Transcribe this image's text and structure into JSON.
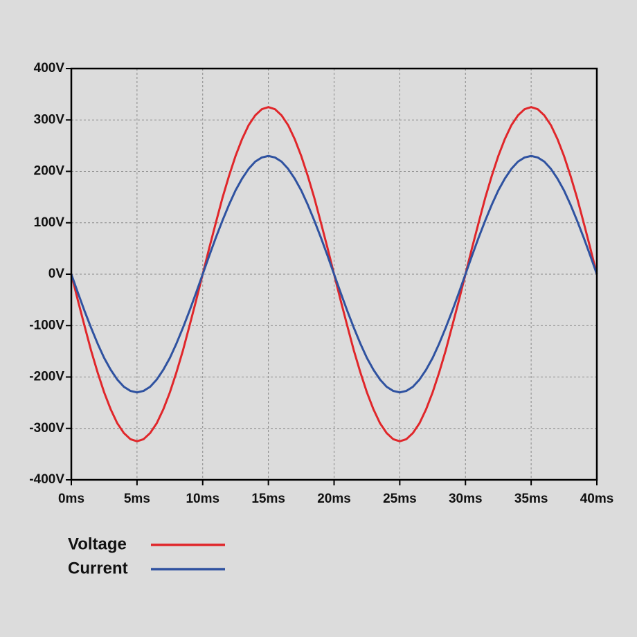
{
  "chart_data": {
    "type": "line",
    "x": [
      0,
      0.5,
      1,
      1.5,
      2,
      2.5,
      3,
      3.5,
      4,
      4.5,
      5,
      5.5,
      6,
      6.5,
      7,
      7.5,
      8,
      8.5,
      9,
      9.5,
      10,
      10.5,
      11,
      11.5,
      12,
      12.5,
      13,
      13.5,
      14,
      14.5,
      15,
      15.5,
      16,
      16.5,
      17,
      17.5,
      18,
      18.5,
      19,
      19.5,
      20,
      20.5,
      21,
      21.5,
      22,
      22.5,
      23,
      23.5,
      24,
      24.5,
      25,
      25.5,
      26,
      26.5,
      27,
      27.5,
      28,
      28.5,
      29,
      29.5,
      30,
      30.5,
      31,
      31.5,
      32,
      32.5,
      33,
      33.5,
      34,
      34.5,
      35,
      35.5,
      36,
      36.5,
      37,
      37.5,
      38,
      38.5,
      39,
      39.5,
      40
    ],
    "series": [
      {
        "name": "Voltage",
        "color": "#e0262a",
        "values": [
          0,
          -51,
          -100,
          -148,
          -191,
          -230,
          -263,
          -290,
          -309,
          -321,
          -325,
          -321,
          -309,
          -290,
          -263,
          -230,
          -191,
          -148,
          -100,
          -51,
          0,
          51,
          100,
          148,
          191,
          230,
          263,
          290,
          309,
          321,
          325,
          321,
          309,
          290,
          263,
          230,
          191,
          148,
          100,
          51,
          0,
          -51,
          -100,
          -148,
          -191,
          -230,
          -263,
          -290,
          -309,
          -321,
          -325,
          -321,
          -309,
          -290,
          -263,
          -230,
          -191,
          -148,
          -100,
          -51,
          0,
          51,
          100,
          148,
          191,
          230,
          263,
          290,
          309,
          321,
          325,
          321,
          309,
          290,
          263,
          230,
          191,
          148,
          100,
          51,
          0
        ]
      },
      {
        "name": "Current",
        "color": "#2f52a0",
        "values": [
          0,
          -36,
          -71,
          -104,
          -135,
          -163,
          -186,
          -205,
          -219,
          -227,
          -230,
          -227,
          -219,
          -205,
          -186,
          -163,
          -135,
          -104,
          -71,
          -36,
          0,
          36,
          71,
          104,
          135,
          163,
          186,
          205,
          219,
          227,
          230,
          227,
          219,
          205,
          186,
          163,
          135,
          104,
          71,
          36,
          0,
          -36,
          -71,
          -104,
          -135,
          -163,
          -186,
          -205,
          -219,
          -227,
          -230,
          -227,
          -219,
          -205,
          -186,
          -163,
          -135,
          -104,
          -71,
          -36,
          0,
          36,
          71,
          104,
          135,
          163,
          186,
          205,
          219,
          227,
          230,
          227,
          219,
          205,
          186,
          163,
          135,
          104,
          71,
          36,
          0
        ]
      }
    ],
    "xlim": [
      0,
      40
    ],
    "xticks": [
      {
        "value": 0,
        "label": "0ms"
      },
      {
        "value": 5,
        "label": "5ms"
      },
      {
        "value": 10,
        "label": "10ms"
      },
      {
        "value": 15,
        "label": "15ms"
      },
      {
        "value": 20,
        "label": "20ms"
      },
      {
        "value": 25,
        "label": "25ms"
      },
      {
        "value": 30,
        "label": "30ms"
      },
      {
        "value": 35,
        "label": "35ms"
      },
      {
        "value": 40,
        "label": "40ms"
      }
    ],
    "ylim": [
      -400,
      400
    ],
    "yticks": [
      {
        "value": -400,
        "label": "-400V"
      },
      {
        "value": -300,
        "label": "-300V"
      },
      {
        "value": -200,
        "label": "-200V"
      },
      {
        "value": -100,
        "label": "-100V"
      },
      {
        "value": 0,
        "label": "0V"
      },
      {
        "value": 100,
        "label": "100V"
      },
      {
        "value": 200,
        "label": "200V"
      },
      {
        "value": 300,
        "label": "300V"
      },
      {
        "value": 400,
        "label": "400V"
      }
    ],
    "grid": true
  }
}
